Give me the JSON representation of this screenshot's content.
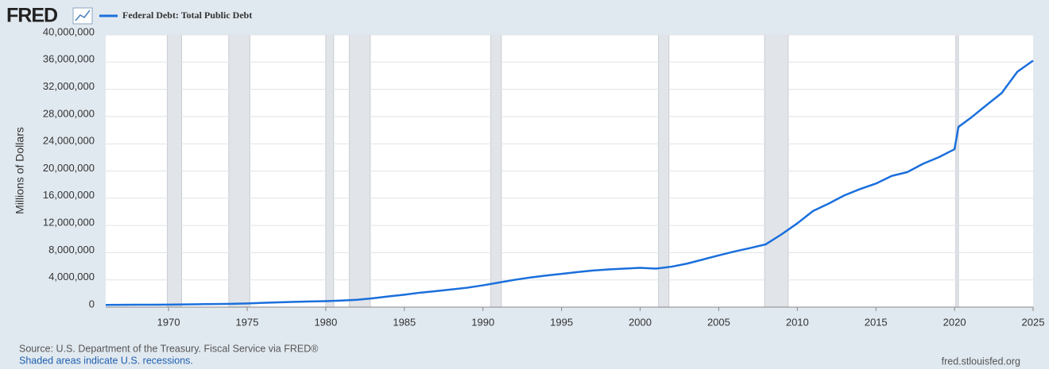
{
  "chart_data": {
    "type": "line",
    "logo": "FRED",
    "ylabel": "Millions of Dollars",
    "source": "Source: U.S. Department of the Treasury. Fiscal Service via FRED®",
    "note": "Shaded areas indicate U.S. recessions.",
    "url": "fred.stlouisfed.org",
    "x": [
      1966,
      1967,
      1968,
      1969,
      1970,
      1971,
      1972,
      1973,
      1974,
      1975,
      1976,
      1977,
      1978,
      1979,
      1980,
      1981,
      1982,
      1983,
      1984,
      1985,
      1986,
      1987,
      1988,
      1989,
      1990,
      1991,
      1992,
      1993,
      1994,
      1995,
      1996,
      1997,
      1998,
      1999,
      2000,
      2001,
      2002,
      2003,
      2004,
      2005,
      2006,
      2007,
      2008,
      2009,
      2010,
      2011,
      2012,
      2013,
      2014,
      2015,
      2016,
      2017,
      2018,
      2019,
      2020,
      2020.25,
      2021,
      2022,
      2023,
      2024,
      2025
    ],
    "series": [
      {
        "name": "Federal Debt: Total Public Debt",
        "color": "#1a6fdc",
        "values": [
          321000,
          330000,
          345000,
          355000,
          370000,
          398000,
          427000,
          458000,
          475000,
          533000,
          620000,
          699000,
          772000,
          827000,
          880000,
          964000,
          1080000,
          1300000,
          1570000,
          1820000,
          2120000,
          2350000,
          2600000,
          2850000,
          3200000,
          3600000,
          4000000,
          4350000,
          4640000,
          4890000,
          5140000,
          5380000,
          5540000,
          5650000,
          5770000,
          5660000,
          5940000,
          6400000,
          7000000,
          7600000,
          8170000,
          8680000,
          9230000,
          10700000,
          12310000,
          14130000,
          15220000,
          16430000,
          17350000,
          18150000,
          19270000,
          19840000,
          21060000,
          22030000,
          23200000,
          26480000,
          27750000,
          29620000,
          31460000,
          34590000,
          36220000
        ]
      }
    ],
    "recessions": [
      [
        1969.92,
        1970.83
      ],
      [
        1973.83,
        1975.17
      ],
      [
        1980.0,
        1980.5
      ],
      [
        1981.5,
        1982.83
      ],
      [
        1990.5,
        1991.17
      ],
      [
        2001.17,
        2001.83
      ],
      [
        2007.92,
        2009.42
      ],
      [
        2020.08,
        2020.25
      ]
    ],
    "xlim": [
      1966,
      2025
    ],
    "xticks": [
      1970,
      1975,
      1980,
      1985,
      1990,
      1995,
      2000,
      2005,
      2010,
      2015,
      2020,
      2025
    ],
    "ylim": [
      0,
      40000000
    ],
    "yticks": [
      0,
      {
        "value": 4000000,
        "label": "4,000,000"
      },
      {
        "value": 8000000,
        "label": "8,000,000"
      },
      {
        "value": 12000000,
        "label": "12,000,000"
      },
      {
        "value": 16000000,
        "label": "16,000,000"
      },
      {
        "value": 20000000,
        "label": "20,000,000"
      },
      {
        "value": 24000000,
        "label": "24,000,000"
      },
      {
        "value": 28000000,
        "label": "28,000,000"
      },
      {
        "value": 32000000,
        "label": "32,000,000"
      },
      {
        "value": 36000000,
        "label": "36,000,000"
      },
      {
        "value": 40000000,
        "label": "40,000,000"
      }
    ],
    "grid": true,
    "recession_color": "#e1e4e8"
  }
}
